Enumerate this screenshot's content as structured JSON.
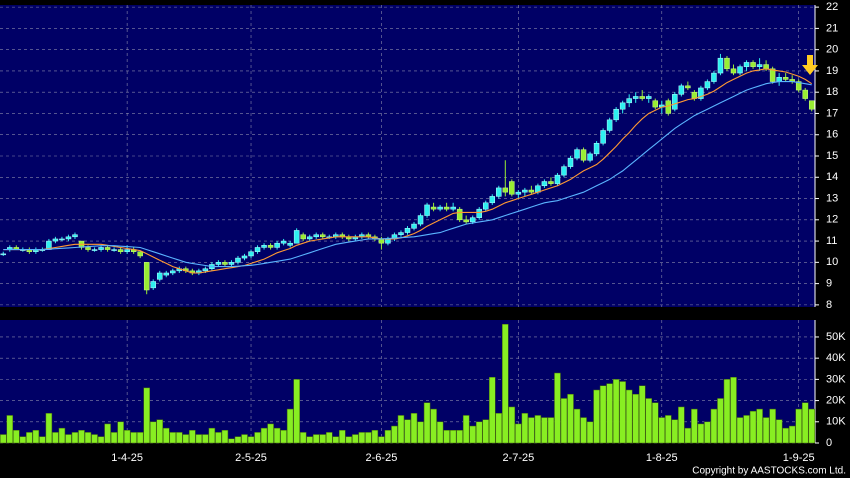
{
  "chart_data": [
    {
      "type": "candlestick",
      "ylim": [
        7.9,
        22.1
      ],
      "yticks": [
        8,
        9,
        10,
        11,
        12,
        13,
        14,
        15,
        16,
        17,
        18,
        19,
        20,
        21,
        22
      ],
      "grid": true,
      "up_color": "#2ef0f0",
      "down_color": "#99ee33",
      "candles": [
        [
          10.4,
          10.5,
          10.3,
          10.4
        ],
        [
          10.6,
          10.8,
          10.5,
          10.7
        ],
        [
          10.7,
          10.8,
          10.6,
          10.6
        ],
        [
          10.6,
          10.7,
          10.5,
          10.6
        ],
        [
          10.6,
          10.7,
          10.4,
          10.5
        ],
        [
          10.5,
          10.7,
          10.4,
          10.6
        ],
        [
          10.6,
          10.7,
          10.5,
          10.6
        ],
        [
          10.6,
          11.1,
          10.6,
          11.0
        ],
        [
          11.0,
          11.2,
          10.9,
          11.1
        ],
        [
          11.1,
          11.2,
          11.0,
          11.1
        ],
        [
          11.1,
          11.3,
          11.0,
          11.2
        ],
        [
          11.2,
          11.4,
          11.1,
          11.3
        ],
        [
          11.0,
          11.0,
          10.6,
          10.7
        ],
        [
          10.7,
          10.8,
          10.5,
          10.6
        ],
        [
          10.6,
          10.7,
          10.5,
          10.6
        ],
        [
          10.6,
          10.8,
          10.5,
          10.7
        ],
        [
          10.7,
          10.8,
          10.5,
          10.6
        ],
        [
          10.6,
          10.7,
          10.5,
          10.6
        ],
        [
          10.6,
          10.7,
          10.4,
          10.5
        ],
        [
          10.5,
          10.8,
          10.4,
          10.6
        ],
        [
          10.6,
          10.7,
          10.4,
          10.5
        ],
        [
          10.5,
          10.5,
          10.2,
          10.3
        ],
        [
          10.0,
          10.0,
          8.5,
          8.7
        ],
        [
          8.8,
          9.2,
          8.7,
          9.1
        ],
        [
          9.2,
          9.6,
          9.1,
          9.5
        ],
        [
          9.4,
          9.6,
          9.3,
          9.5
        ],
        [
          9.5,
          9.7,
          9.4,
          9.6
        ],
        [
          9.6,
          9.8,
          9.5,
          9.7
        ],
        [
          9.7,
          9.8,
          9.5,
          9.6
        ],
        [
          9.6,
          9.7,
          9.4,
          9.5
        ],
        [
          9.5,
          9.7,
          9.4,
          9.6
        ],
        [
          9.6,
          9.8,
          9.5,
          9.7
        ],
        [
          9.7,
          10.0,
          9.6,
          9.9
        ],
        [
          9.9,
          10.1,
          9.8,
          10.0
        ],
        [
          10.0,
          10.1,
          9.8,
          9.9
        ],
        [
          9.9,
          10.1,
          9.8,
          10.0
        ],
        [
          10.0,
          10.3,
          9.9,
          10.2
        ],
        [
          10.2,
          10.4,
          10.1,
          10.3
        ],
        [
          10.3,
          10.6,
          10.2,
          10.5
        ],
        [
          10.5,
          10.8,
          10.4,
          10.7
        ],
        [
          10.7,
          10.9,
          10.6,
          10.8
        ],
        [
          10.8,
          10.9,
          10.6,
          10.7
        ],
        [
          10.7,
          11.0,
          10.6,
          10.9
        ],
        [
          10.9,
          11.1,
          10.8,
          11.0
        ],
        [
          10.8,
          11.0,
          10.7,
          10.9
        ],
        [
          10.9,
          11.6,
          10.9,
          11.5
        ],
        [
          11.3,
          11.4,
          11.0,
          11.1
        ],
        [
          11.1,
          11.3,
          11.0,
          11.2
        ],
        [
          11.2,
          11.4,
          11.1,
          11.3
        ],
        [
          11.3,
          11.4,
          11.1,
          11.2
        ],
        [
          11.2,
          11.3,
          11.1,
          11.2
        ],
        [
          11.2,
          11.4,
          11.1,
          11.3
        ],
        [
          11.3,
          11.4,
          11.1,
          11.2
        ],
        [
          11.2,
          11.3,
          11.0,
          11.1
        ],
        [
          11.1,
          11.3,
          11.0,
          11.2
        ],
        [
          11.2,
          11.4,
          11.1,
          11.3
        ],
        [
          11.3,
          11.4,
          11.1,
          11.2
        ],
        [
          11.2,
          11.3,
          11.0,
          11.1
        ],
        [
          11.1,
          11.2,
          10.6,
          10.9
        ],
        [
          10.9,
          11.2,
          10.8,
          11.1
        ],
        [
          11.1,
          11.4,
          11.0,
          11.3
        ],
        [
          11.3,
          11.5,
          11.2,
          11.4
        ],
        [
          11.4,
          11.7,
          11.3,
          11.6
        ],
        [
          11.6,
          11.9,
          11.5,
          11.8
        ],
        [
          11.8,
          12.3,
          11.7,
          12.2
        ],
        [
          12.2,
          12.8,
          12.1,
          12.7
        ],
        [
          12.6,
          12.8,
          12.4,
          12.5
        ],
        [
          12.5,
          12.7,
          12.4,
          12.6
        ],
        [
          12.6,
          12.8,
          12.4,
          12.5
        ],
        [
          12.5,
          12.8,
          12.4,
          12.6
        ],
        [
          12.5,
          12.6,
          11.9,
          12.0
        ],
        [
          12.0,
          12.2,
          11.8,
          11.9
        ],
        [
          11.9,
          12.2,
          11.8,
          12.1
        ],
        [
          12.1,
          12.6,
          12.0,
          12.5
        ],
        [
          12.5,
          12.9,
          12.4,
          12.8
        ],
        [
          12.8,
          13.2,
          12.7,
          13.1
        ],
        [
          13.1,
          13.6,
          13.0,
          13.5
        ],
        [
          13.5,
          14.8,
          13.1,
          13.3
        ],
        [
          13.8,
          13.9,
          13.1,
          13.2
        ],
        [
          13.2,
          13.4,
          13.0,
          13.3
        ],
        [
          13.3,
          13.5,
          13.1,
          13.4
        ],
        [
          13.4,
          13.6,
          13.2,
          13.3
        ],
        [
          13.3,
          13.7,
          13.2,
          13.6
        ],
        [
          13.6,
          13.9,
          13.5,
          13.8
        ],
        [
          13.8,
          14.0,
          13.6,
          13.7
        ],
        [
          13.7,
          14.2,
          13.6,
          14.1
        ],
        [
          14.1,
          14.6,
          14.0,
          14.5
        ],
        [
          14.5,
          15.0,
          14.4,
          14.9
        ],
        [
          14.9,
          15.4,
          14.8,
          15.3
        ],
        [
          15.3,
          15.4,
          14.7,
          14.8
        ],
        [
          14.8,
          15.2,
          14.7,
          15.1
        ],
        [
          15.1,
          15.7,
          15.0,
          15.6
        ],
        [
          15.6,
          16.3,
          15.5,
          16.2
        ],
        [
          16.2,
          16.8,
          16.1,
          16.7
        ],
        [
          16.7,
          17.3,
          16.6,
          17.2
        ],
        [
          17.2,
          17.6,
          17.0,
          17.5
        ],
        [
          17.5,
          17.9,
          17.3,
          17.7
        ],
        [
          17.7,
          18.0,
          17.5,
          17.8
        ],
        [
          17.8,
          18.1,
          17.6,
          17.7
        ],
        [
          17.7,
          17.9,
          17.5,
          17.8
        ],
        [
          17.6,
          17.7,
          17.2,
          17.3
        ],
        [
          17.3,
          17.6,
          17.0,
          17.4
        ],
        [
          17.6,
          17.7,
          16.9,
          17.0
        ],
        [
          17.2,
          18.0,
          17.1,
          17.9
        ],
        [
          17.9,
          18.4,
          17.8,
          18.3
        ],
        [
          18.3,
          18.5,
          18.1,
          18.2
        ],
        [
          18.0,
          18.1,
          17.6,
          17.7
        ],
        [
          17.7,
          18.3,
          17.6,
          18.2
        ],
        [
          18.2,
          18.6,
          18.1,
          18.5
        ],
        [
          18.5,
          19.0,
          18.4,
          18.9
        ],
        [
          18.9,
          19.8,
          18.8,
          19.6
        ],
        [
          19.6,
          19.7,
          19.0,
          19.1
        ],
        [
          19.1,
          19.3,
          18.8,
          18.9
        ],
        [
          18.9,
          19.3,
          18.8,
          19.2
        ],
        [
          19.2,
          19.5,
          19.0,
          19.4
        ],
        [
          19.4,
          19.5,
          19.1,
          19.2
        ],
        [
          19.2,
          19.6,
          19.0,
          19.3
        ],
        [
          19.3,
          19.5,
          19.0,
          19.1
        ],
        [
          19.1,
          19.2,
          18.4,
          18.5
        ],
        [
          18.5,
          18.9,
          18.3,
          18.7
        ],
        [
          18.7,
          18.9,
          18.5,
          18.6
        ],
        [
          18.6,
          18.8,
          18.4,
          18.5
        ],
        [
          18.5,
          18.6,
          18.0,
          18.1
        ],
        [
          18.1,
          18.2,
          17.6,
          17.7
        ],
        [
          17.6,
          17.6,
          17.1,
          17.2
        ]
      ],
      "series": [
        {
          "color": "#ff9933",
          "values": [
            10.6,
            10.6,
            10.6,
            10.6,
            10.6,
            10.6,
            10.6,
            10.65,
            10.7,
            10.75,
            10.8,
            10.85,
            10.85,
            10.85,
            10.85,
            10.85,
            10.8,
            10.75,
            10.7,
            10.65,
            10.6,
            10.55,
            10.4,
            10.25,
            10.1,
            9.95,
            9.8,
            9.7,
            9.6,
            9.5,
            9.5,
            9.55,
            9.6,
            9.65,
            9.7,
            9.75,
            9.8,
            9.85,
            9.95,
            10.05,
            10.15,
            10.3,
            10.45,
            10.55,
            10.65,
            10.8,
            10.9,
            11.0,
            11.05,
            11.1,
            11.15,
            11.2,
            11.2,
            11.2,
            11.2,
            11.2,
            11.2,
            11.15,
            11.1,
            11.1,
            11.1,
            11.15,
            11.25,
            11.35,
            11.5,
            11.7,
            11.85,
            12.0,
            12.15,
            12.3,
            12.35,
            12.35,
            12.35,
            12.35,
            12.4,
            12.5,
            12.65,
            12.8,
            12.9,
            13.0,
            13.1,
            13.2,
            13.3,
            13.4,
            13.5,
            13.6,
            13.75,
            13.9,
            14.1,
            14.3,
            14.45,
            14.6,
            14.85,
            15.15,
            15.45,
            15.8,
            16.1,
            16.45,
            16.75,
            17.0,
            17.15,
            17.3,
            17.35,
            17.45,
            17.55,
            17.65,
            17.7,
            17.8,
            17.9,
            18.05,
            18.25,
            18.45,
            18.6,
            18.75,
            18.9,
            19.0,
            19.05,
            19.1,
            19.05,
            19.0,
            18.95,
            18.85,
            18.75,
            18.6,
            18.4
          ]
        },
        {
          "color": "#5ab4ff",
          "values": [
            10.6,
            10.6,
            10.6,
            10.6,
            10.6,
            10.6,
            10.6,
            10.62,
            10.64,
            10.66,
            10.68,
            10.7,
            10.72,
            10.74,
            10.76,
            10.78,
            10.78,
            10.78,
            10.76,
            10.74,
            10.72,
            10.7,
            10.6,
            10.5,
            10.4,
            10.3,
            10.2,
            10.1,
            10.0,
            9.95,
            9.9,
            9.85,
            9.8,
            9.8,
            9.8,
            9.8,
            9.82,
            9.84,
            9.86,
            9.9,
            9.95,
            10.0,
            10.05,
            10.1,
            10.15,
            10.25,
            10.35,
            10.45,
            10.55,
            10.65,
            10.75,
            10.85,
            10.9,
            10.95,
            11.0,
            11.05,
            11.1,
            11.1,
            11.1,
            11.12,
            11.14,
            11.16,
            11.18,
            11.2,
            11.25,
            11.3,
            11.35,
            11.4,
            11.5,
            11.6,
            11.7,
            11.8,
            11.85,
            11.9,
            11.95,
            12.0,
            12.1,
            12.2,
            12.3,
            12.4,
            12.5,
            12.6,
            12.7,
            12.8,
            12.85,
            12.9,
            13.0,
            13.1,
            13.2,
            13.3,
            13.45,
            13.6,
            13.75,
            13.9,
            14.1,
            14.3,
            14.55,
            14.8,
            15.05,
            15.3,
            15.55,
            15.8,
            16.05,
            16.3,
            16.5,
            16.7,
            16.9,
            17.05,
            17.2,
            17.35,
            17.5,
            17.65,
            17.8,
            17.95,
            18.1,
            18.2,
            18.3,
            18.4,
            18.45,
            18.5,
            18.5,
            18.5,
            18.45,
            18.4,
            18.35
          ]
        }
      ]
    },
    {
      "type": "bar",
      "color": "#88ee22",
      "ylim": [
        0,
        58
      ],
      "yticks": [
        0,
        {
          "value": 10,
          "label": "10K"
        },
        {
          "value": 20,
          "label": "20K"
        },
        {
          "value": 30,
          "label": "30K"
        },
        {
          "value": 40,
          "label": "40K"
        },
        {
          "value": 50,
          "label": "50K"
        }
      ],
      "grid": true,
      "categories": [
        null,
        null,
        null,
        null,
        null,
        null,
        null,
        null,
        null,
        null,
        null,
        null,
        null,
        null,
        null,
        null,
        null,
        null,
        null,
        "1-4-25",
        null,
        null,
        null,
        null,
        null,
        null,
        null,
        null,
        null,
        null,
        null,
        null,
        null,
        null,
        null,
        null,
        null,
        null,
        "2-5-25",
        null,
        null,
        null,
        null,
        null,
        null,
        null,
        null,
        null,
        null,
        null,
        null,
        null,
        null,
        null,
        null,
        null,
        null,
        null,
        "2-6-25",
        null,
        null,
        null,
        null,
        null,
        null,
        null,
        null,
        null,
        null,
        null,
        null,
        null,
        null,
        null,
        null,
        null,
        null,
        null,
        null,
        "2-7-25",
        null,
        null,
        null,
        null,
        null,
        null,
        null,
        null,
        null,
        null,
        null,
        null,
        null,
        null,
        null,
        null,
        null,
        null,
        null,
        null,
        null,
        "1-8-25",
        null,
        null,
        null,
        null,
        null,
        null,
        null,
        null,
        null,
        null,
        null,
        null,
        null,
        null,
        null,
        null,
        null,
        null,
        null,
        null,
        "1-9-25",
        null,
        null
      ],
      "values": [
        4,
        13,
        6,
        3,
        5,
        6,
        3,
        14,
        5,
        7,
        4,
        5,
        6,
        5,
        4,
        3,
        9,
        5,
        10,
        6,
        5,
        5,
        26,
        10,
        11,
        7,
        5,
        5,
        4,
        6,
        4,
        4,
        7,
        5,
        6,
        2,
        3,
        4,
        3,
        5,
        7,
        9,
        7,
        6,
        16,
        30,
        5,
        3,
        4,
        4,
        5,
        3,
        6,
        3,
        4,
        5,
        5,
        6,
        3,
        6,
        8,
        13,
        11,
        14,
        10,
        19,
        16,
        10,
        6,
        6,
        6,
        13,
        8,
        10,
        11,
        31,
        14,
        56,
        17,
        9,
        14,
        12,
        13,
        12,
        12,
        33,
        21,
        23,
        16,
        12,
        10,
        25,
        27,
        28,
        30,
        29,
        25,
        23,
        27,
        21,
        19,
        12,
        13,
        11,
        17,
        7,
        16,
        9,
        10,
        16,
        21,
        30,
        31,
        12,
        13,
        15,
        16,
        12,
        16,
        11,
        7,
        8,
        16,
        19,
        16
      ]
    },
    {
      "copyright": "Copyright by AASTOCKS.com Ltd."
    }
  ]
}
